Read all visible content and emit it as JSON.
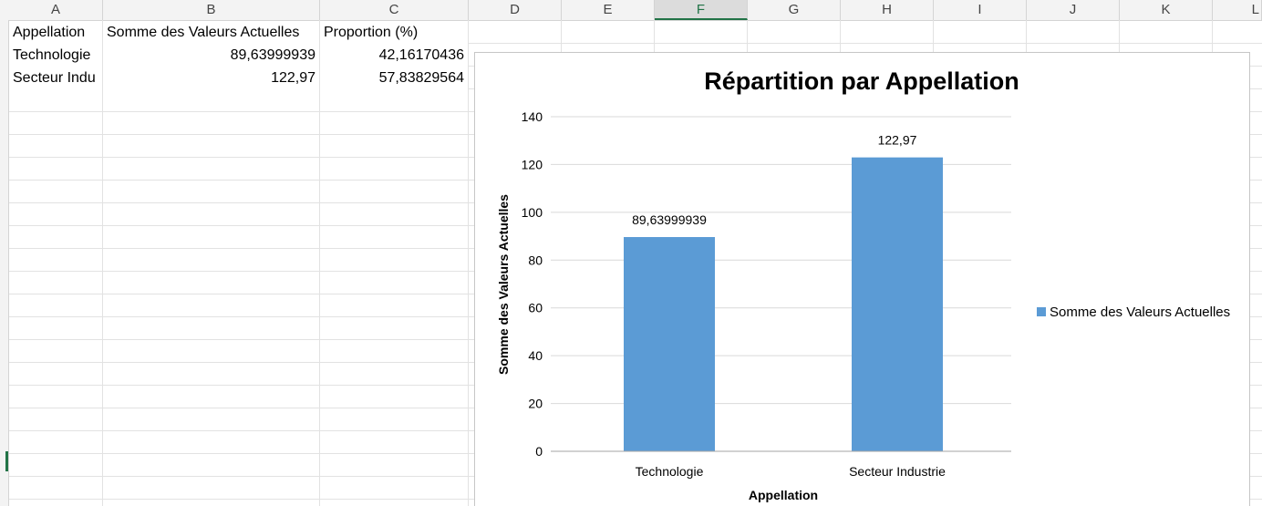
{
  "columns": [
    "A",
    "B",
    "C",
    "D",
    "E",
    "F",
    "G",
    "H",
    "I",
    "J",
    "K",
    "L"
  ],
  "selected_column": "F",
  "rows": [
    {
      "a": "Appellation",
      "b": "Somme des Valeurs Actuelles",
      "c": "Proportion (%)"
    },
    {
      "a": "Technologie",
      "b": "89,63999939",
      "c": "42,16170436"
    },
    {
      "a": "Secteur Indu",
      "b": "122,97",
      "c": "57,83829564"
    }
  ],
  "colors": {
    "bar": "#5b9bd5",
    "grid": "#d9d9d9",
    "selection": "#217346"
  },
  "chart_data": {
    "type": "bar",
    "title": "Répartition par Appellation",
    "xlabel": "Appellation",
    "ylabel": "Somme des Valeurs Actuelles",
    "categories": [
      "Technologie",
      "Secteur Industrie"
    ],
    "series": [
      {
        "name": "Somme des Valeurs Actuelles",
        "values": [
          89.63999939,
          122.97
        ]
      }
    ],
    "data_labels": [
      "89,63999939",
      "122,97"
    ],
    "ylim": [
      0,
      140
    ],
    "yticks": [
      0,
      20,
      40,
      60,
      80,
      100,
      120,
      140
    ],
    "grid": true,
    "legend_position": "right"
  }
}
